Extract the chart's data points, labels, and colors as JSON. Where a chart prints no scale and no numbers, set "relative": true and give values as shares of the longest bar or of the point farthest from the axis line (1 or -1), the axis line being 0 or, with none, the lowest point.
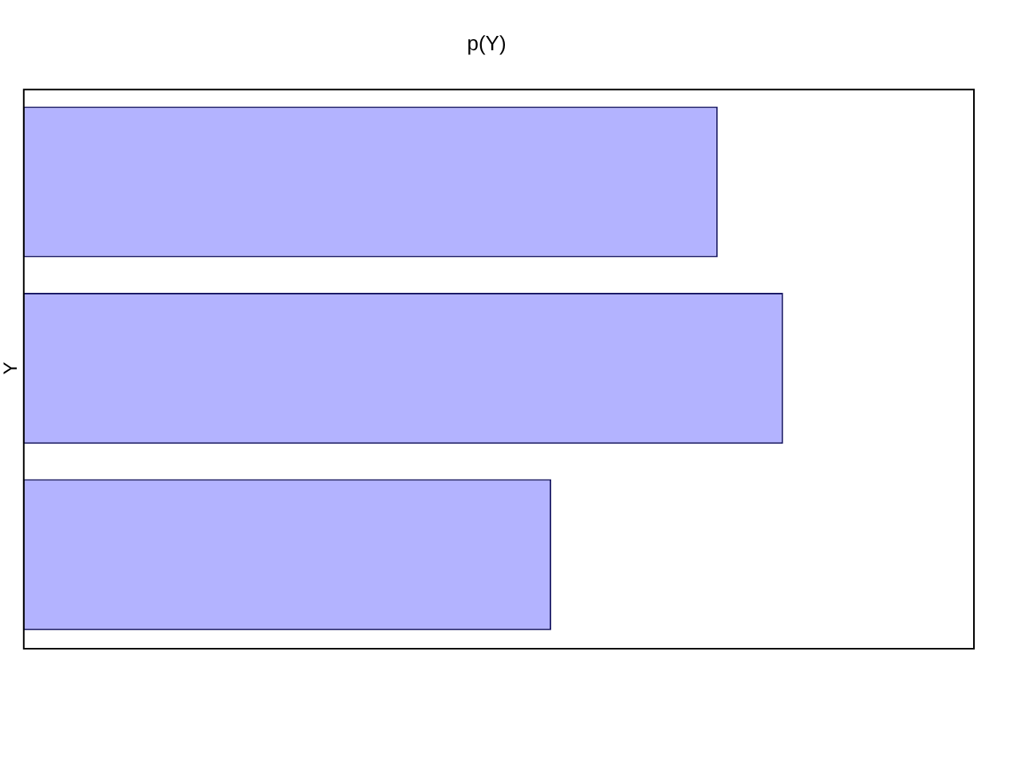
{
  "chart_data": {
    "type": "bar",
    "orientation": "horizontal",
    "relative": true,
    "title": "p(Y)",
    "ylabel": "Y",
    "categories": [
      null,
      null,
      null
    ],
    "values": [
      0.914,
      1,
      0.695
    ],
    "color": "#b3b3ff"
  }
}
